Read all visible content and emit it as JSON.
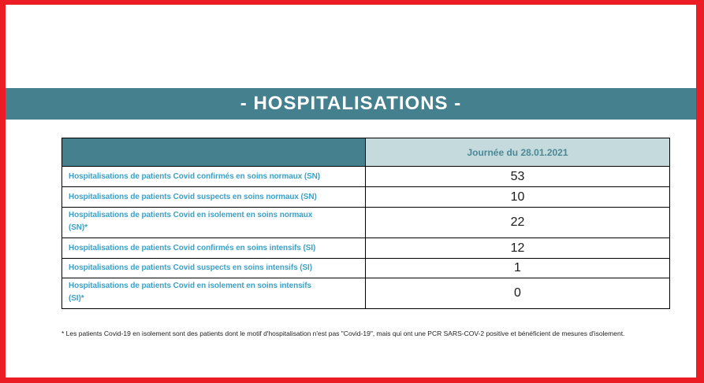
{
  "banner": {
    "title": "- HOSPITALISATIONS -"
  },
  "table": {
    "header": {
      "date_label": "Journée du 28.01.2021"
    },
    "rows": [
      {
        "label": "Hospitalisations de patients Covid confirmés en soins normaux (SN)",
        "value": "53"
      },
      {
        "label": "Hospitalisations de patients Covid suspects en soins normaux (SN)",
        "value": "10"
      },
      {
        "label": "Hospitalisations de patients Covid en isolement en soins normaux\n(SN)*",
        "value": "22"
      },
      {
        "label": "Hospitalisations de patients Covid confirmés en soins intensifs (SI)",
        "value": "12"
      },
      {
        "label": "Hospitalisations de patients Covid suspects en soins intensifs (SI)",
        "value": "1"
      },
      {
        "label": "Hospitalisations de patients Covid en isolement en soins intensifs\n(SI)*",
        "value": "0"
      }
    ]
  },
  "footnote": "* Les patients Covid-19 en isolement sont des patients dont le motif d'hospitalisation n'est pas \"Covid-19\", mais qui ont une PCR SARS-COV-2 positive et bénéficient de mesures d'isolement.",
  "colors": {
    "frame_red": "#ec1c24",
    "banner_teal": "#44808d",
    "header_fill": "#c5dadd",
    "date_text": "#4a8995",
    "label_text": "#3ca1c6",
    "value_text": "#1a1a1a"
  }
}
